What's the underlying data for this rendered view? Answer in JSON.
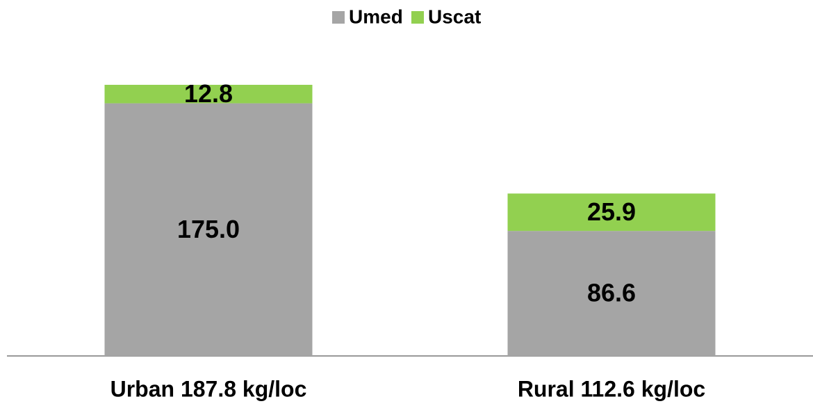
{
  "chart_data": {
    "type": "stacked_bar",
    "categories": [
      "Urban 187.8 kg/loc",
      "Rural 112.6 kg/loc"
    ],
    "series": [
      {
        "name": "Umed",
        "color": "#a5a5a5",
        "values": [
          175.0,
          86.6
        ],
        "value_labels": [
          "175.0",
          "86.6"
        ]
      },
      {
        "name": "Uscat",
        "color": "#92d050",
        "values": [
          12.8,
          25.9
        ]
      }
    ],
    "legend": "top"
  }
}
